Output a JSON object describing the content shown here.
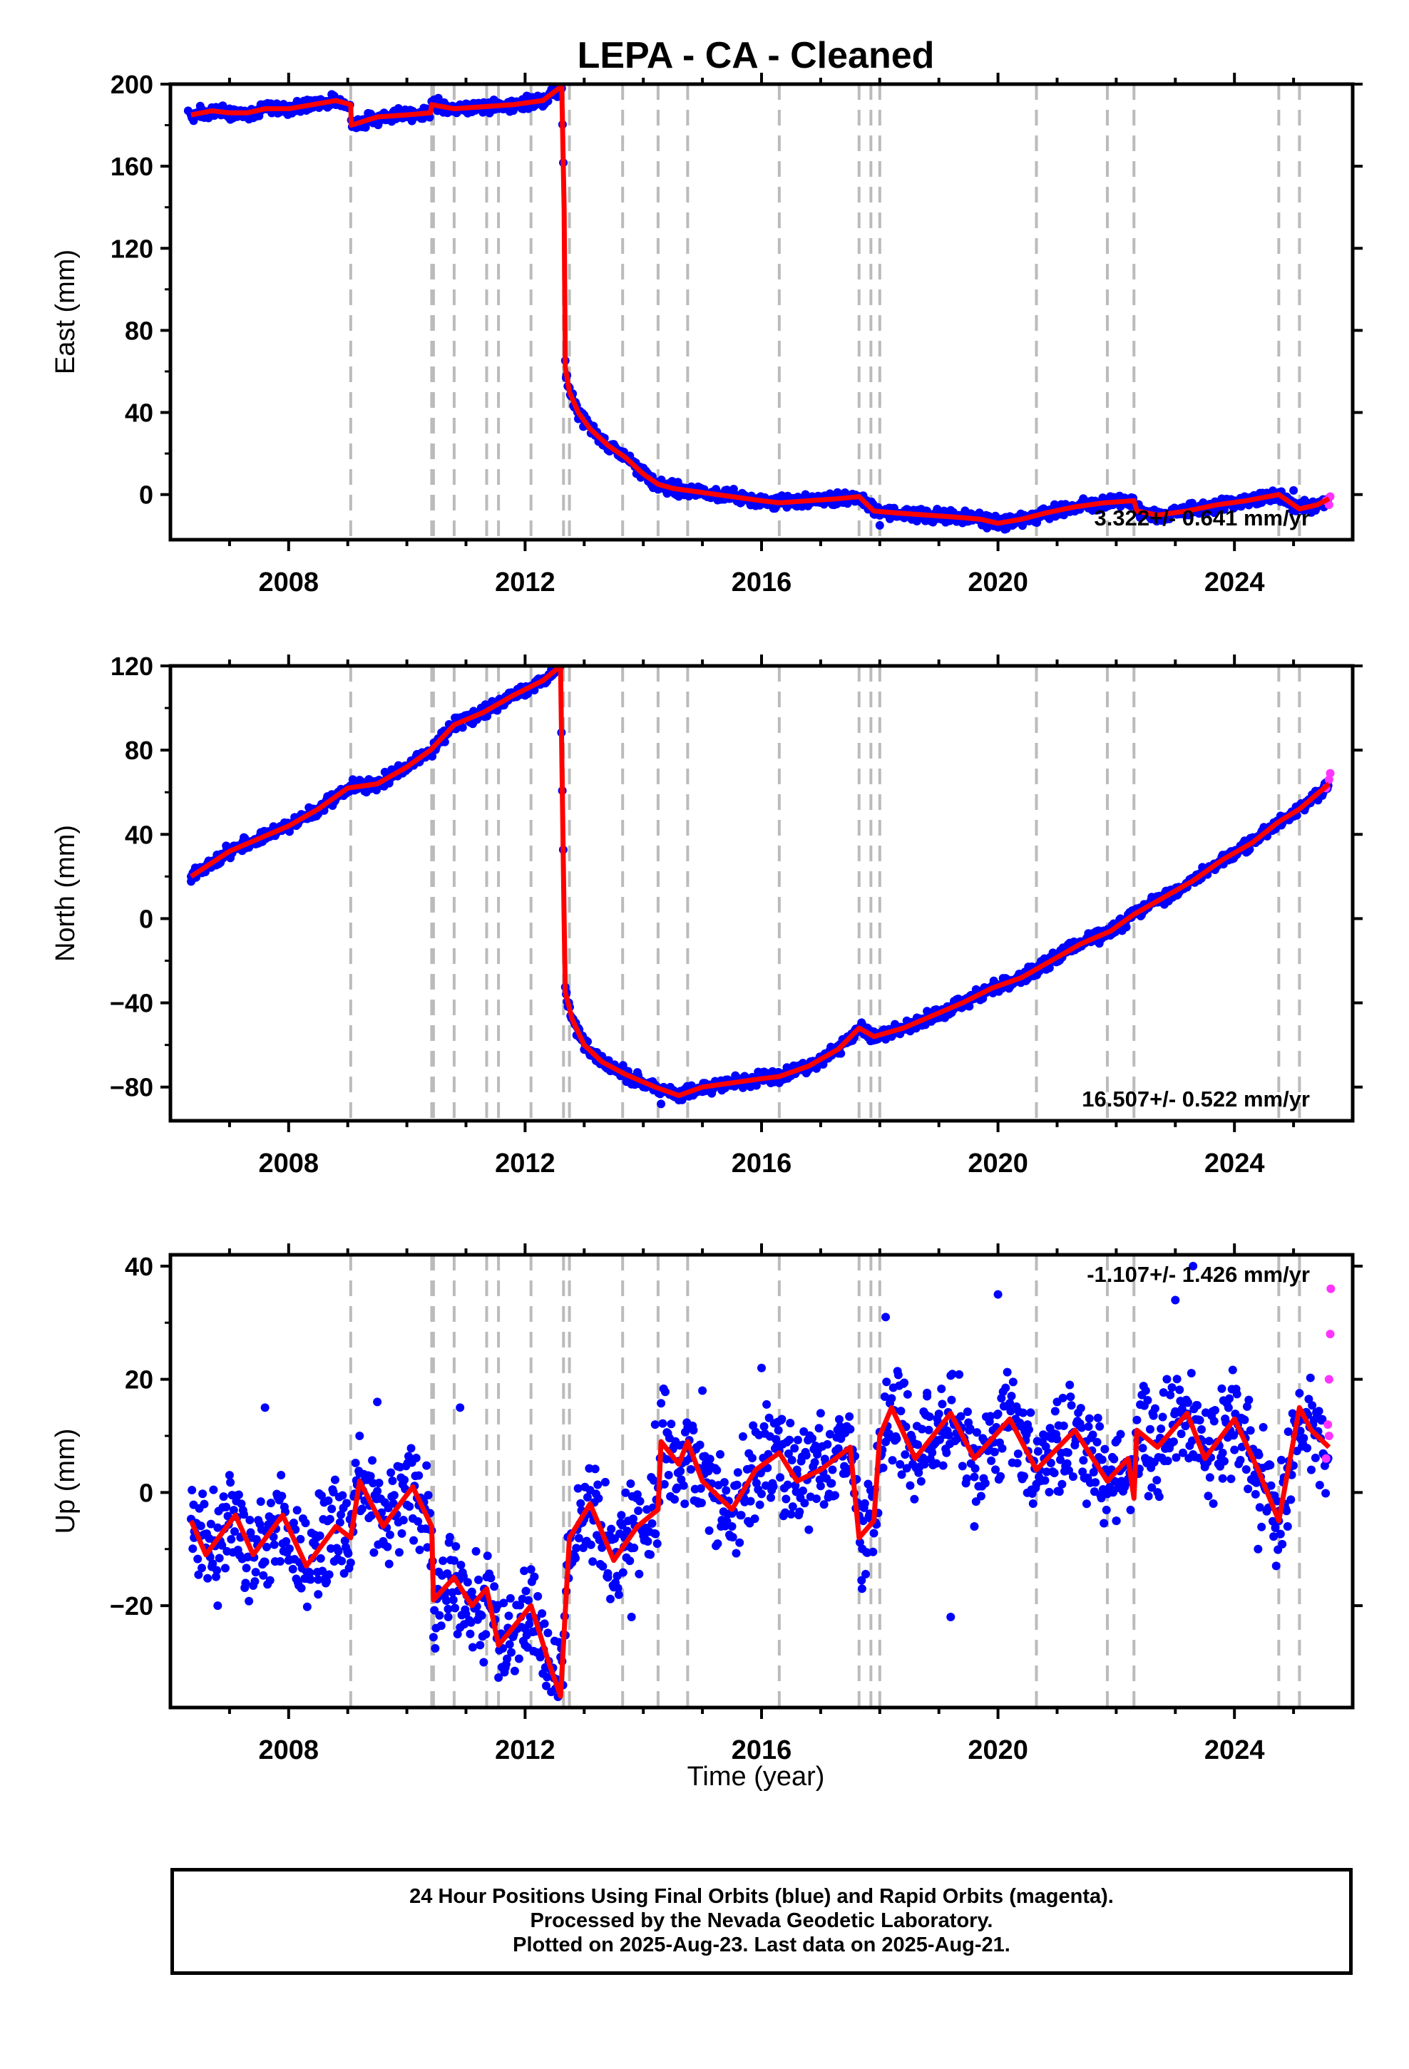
{
  "title": "LEPA  - CA - Cleaned",
  "xlabel": "Time (year)",
  "footer": {
    "line1": "24 Hour Positions Using Final Orbits (blue) and Rapid Orbits (magenta).",
    "line2": "Processed by the Nevada Geodetic Laboratory.",
    "line3": "Plotted on 2025-Aug-23. Last data on 2025-Aug-21."
  },
  "colors": {
    "final": "#0000ff",
    "rapid": "#ff33ff",
    "model": "#ff0000",
    "event": "#bbbbbb",
    "axis": "#000000"
  },
  "chart_data": [
    {
      "type": "scatter",
      "component": "East",
      "ylabel": "East (mm)",
      "xlim": [
        2006,
        2026
      ],
      "ylim": [
        -22,
        200
      ],
      "yticks": [
        0,
        40,
        80,
        120,
        160,
        200
      ],
      "xticks": [
        2008,
        2012,
        2016,
        2020,
        2024
      ],
      "rate_label": "3.322+/- 0.641 mm/yr",
      "grid": false,
      "event_years": [
        2009.05,
        2010.42,
        2010.45,
        2010.8,
        2011.35,
        2011.55,
        2012.1,
        2012.65,
        2012.75,
        2013.65,
        2014.25,
        2014.75,
        2016.3,
        2017.65,
        2017.85,
        2018.0,
        2020.65,
        2021.85,
        2022.3,
        2024.75,
        2025.1
      ],
      "model": [
        [
          2006.35,
          185
        ],
        [
          2006.7,
          187
        ],
        [
          2007.0,
          186
        ],
        [
          2007.3,
          186
        ],
        [
          2007.6,
          188
        ],
        [
          2008.0,
          188
        ],
        [
          2008.4,
          190
        ],
        [
          2008.8,
          192
        ],
        [
          2009.05,
          190
        ],
        [
          2009.06,
          180
        ],
        [
          2009.5,
          184
        ],
        [
          2010.0,
          185
        ],
        [
          2010.4,
          186
        ],
        [
          2010.42,
          190
        ],
        [
          2010.8,
          188
        ],
        [
          2011.3,
          189
        ],
        [
          2011.8,
          190
        ],
        [
          2012.3,
          192
        ],
        [
          2012.62,
          199
        ],
        [
          2012.66,
          140
        ],
        [
          2012.68,
          62
        ],
        [
          2012.75,
          50
        ],
        [
          2012.9,
          40
        ],
        [
          2013.1,
          32
        ],
        [
          2013.4,
          24
        ],
        [
          2013.7,
          18
        ],
        [
          2014.0,
          10
        ],
        [
          2014.25,
          5
        ],
        [
          2014.5,
          3
        ],
        [
          2015.0,
          1
        ],
        [
          2015.5,
          -1
        ],
        [
          2016.0,
          -3
        ],
        [
          2016.3,
          -4
        ],
        [
          2016.8,
          -3
        ],
        [
          2017.3,
          -2
        ],
        [
          2017.65,
          -1
        ],
        [
          2017.9,
          -8
        ],
        [
          2018.3,
          -9
        ],
        [
          2018.8,
          -10
        ],
        [
          2019.3,
          -11
        ],
        [
          2019.7,
          -12
        ],
        [
          2020.0,
          -14
        ],
        [
          2020.4,
          -12
        ],
        [
          2020.8,
          -9
        ],
        [
          2021.3,
          -6
        ],
        [
          2021.8,
          -4
        ],
        [
          2022.3,
          -3
        ],
        [
          2022.35,
          -8
        ],
        [
          2022.7,
          -10
        ],
        [
          2023.2,
          -8
        ],
        [
          2023.7,
          -5
        ],
        [
          2024.2,
          -3
        ],
        [
          2024.75,
          0
        ],
        [
          2025.1,
          -7
        ],
        [
          2025.4,
          -5
        ],
        [
          2025.6,
          -2
        ]
      ],
      "final_points": [
        [
          2006.3,
          187
        ],
        [
          2007.0,
          188
        ],
        [
          2007.8,
          189
        ],
        [
          2008.6,
          191
        ],
        [
          2009.1,
          181
        ],
        [
          2009.6,
          184
        ],
        [
          2010.3,
          186
        ],
        [
          2010.9,
          190
        ],
        [
          2011.5,
          190
        ],
        [
          2012.2,
          193
        ],
        [
          2012.7,
          58
        ],
        [
          2012.85,
          45
        ],
        [
          2013.0,
          36
        ],
        [
          2013.3,
          28
        ],
        [
          2013.6,
          20
        ],
        [
          2013.9,
          12
        ],
        [
          2014.2,
          6
        ],
        [
          2014.6,
          2
        ],
        [
          2015.1,
          0
        ],
        [
          2015.6,
          -2
        ],
        [
          2016.1,
          -5
        ],
        [
          2016.6,
          -3
        ],
        [
          2017.1,
          -3
        ],
        [
          2017.6,
          -1
        ],
        [
          2018.0,
          -15
        ],
        [
          2018.4,
          -9
        ],
        [
          2019.0,
          -11
        ],
        [
          2019.5,
          -12
        ],
        [
          2020.0,
          -16
        ],
        [
          2020.5,
          -11
        ],
        [
          2021.0,
          -7
        ],
        [
          2021.5,
          -5
        ],
        [
          2022.0,
          -3
        ],
        [
          2022.5,
          -9
        ],
        [
          2023.0,
          -9
        ],
        [
          2023.5,
          -6
        ],
        [
          2024.0,
          -3
        ],
        [
          2024.5,
          0
        ],
        [
          2025.0,
          2
        ],
        [
          2025.3,
          -5
        ]
      ],
      "rapid_points": [
        [
          2025.55,
          -3
        ],
        [
          2025.6,
          -5
        ],
        [
          2025.62,
          -1
        ]
      ]
    },
    {
      "type": "scatter",
      "component": "North",
      "ylabel": "North (mm)",
      "xlim": [
        2006,
        2026
      ],
      "ylim": [
        -96,
        120
      ],
      "yticks": [
        -80,
        -40,
        0,
        40,
        80,
        120
      ],
      "xticks": [
        2008,
        2012,
        2016,
        2020,
        2024
      ],
      "rate_label": "16.507+/- 0.522 mm/yr",
      "grid": false,
      "event_years": [
        2009.05,
        2010.42,
        2010.45,
        2010.8,
        2011.35,
        2011.55,
        2012.1,
        2012.65,
        2012.75,
        2013.65,
        2014.25,
        2014.75,
        2016.3,
        2017.65,
        2017.85,
        2018.0,
        2020.65,
        2021.85,
        2022.3,
        2024.75,
        2025.1
      ],
      "model": [
        [
          2006.35,
          20
        ],
        [
          2007.0,
          32
        ],
        [
          2007.5,
          38
        ],
        [
          2008.0,
          44
        ],
        [
          2008.5,
          52
        ],
        [
          2009.0,
          62
        ],
        [
          2009.5,
          64
        ],
        [
          2010.0,
          72
        ],
        [
          2010.4,
          80
        ],
        [
          2010.8,
          92
        ],
        [
          2011.3,
          98
        ],
        [
          2011.8,
          106
        ],
        [
          2012.3,
          113
        ],
        [
          2012.6,
          120
        ],
        [
          2012.66,
          0
        ],
        [
          2012.68,
          -35
        ],
        [
          2012.8,
          -48
        ],
        [
          2013.0,
          -60
        ],
        [
          2013.3,
          -68
        ],
        [
          2013.7,
          -74
        ],
        [
          2014.2,
          -80
        ],
        [
          2014.6,
          -84
        ],
        [
          2015.0,
          -80
        ],
        [
          2015.5,
          -78
        ],
        [
          2016.0,
          -76
        ],
        [
          2016.3,
          -75
        ],
        [
          2016.8,
          -70
        ],
        [
          2017.3,
          -62
        ],
        [
          2017.65,
          -52
        ],
        [
          2017.9,
          -56
        ],
        [
          2018.4,
          -52
        ],
        [
          2018.9,
          -46
        ],
        [
          2019.4,
          -40
        ],
        [
          2019.9,
          -33
        ],
        [
          2020.4,
          -28
        ],
        [
          2020.9,
          -20
        ],
        [
          2021.4,
          -12
        ],
        [
          2021.9,
          -6
        ],
        [
          2022.3,
          2
        ],
        [
          2022.8,
          10
        ],
        [
          2023.3,
          18
        ],
        [
          2023.8,
          28
        ],
        [
          2024.3,
          36
        ],
        [
          2024.75,
          46
        ],
        [
          2025.1,
          52
        ],
        [
          2025.6,
          64
        ]
      ],
      "final_points": [
        [
          2006.35,
          20
        ],
        [
          2007.0,
          30
        ],
        [
          2007.6,
          40
        ],
        [
          2008.2,
          47
        ],
        [
          2008.8,
          58
        ],
        [
          2009.4,
          63
        ],
        [
          2010.0,
          72
        ],
        [
          2010.6,
          84
        ],
        [
          2011.2,
          96
        ],
        [
          2011.8,
          106
        ],
        [
          2012.4,
          115
        ],
        [
          2012.7,
          -35
        ],
        [
          2012.9,
          -52
        ],
        [
          2013.2,
          -64
        ],
        [
          2013.6,
          -72
        ],
        [
          2014.0,
          -78
        ],
        [
          2014.3,
          -88
        ],
        [
          2014.8,
          -82
        ],
        [
          2015.3,
          -80
        ],
        [
          2015.8,
          -76
        ],
        [
          2016.3,
          -78
        ],
        [
          2016.8,
          -70
        ],
        [
          2017.3,
          -64
        ],
        [
          2017.7,
          -50
        ],
        [
          2018.2,
          -56
        ],
        [
          2018.7,
          -48
        ],
        [
          2019.2,
          -44
        ],
        [
          2019.7,
          -36
        ],
        [
          2020.2,
          -30
        ],
        [
          2020.7,
          -22
        ],
        [
          2021.2,
          -14
        ],
        [
          2021.7,
          -8
        ],
        [
          2022.2,
          0
        ],
        [
          2022.7,
          10
        ],
        [
          2023.2,
          16
        ],
        [
          2023.7,
          26
        ],
        [
          2024.2,
          34
        ],
        [
          2024.7,
          44
        ],
        [
          2025.2,
          54
        ]
      ],
      "rapid_points": [
        [
          2025.55,
          62
        ],
        [
          2025.6,
          66
        ],
        [
          2025.62,
          69
        ]
      ]
    },
    {
      "type": "scatter",
      "component": "Up",
      "ylabel": "Up (mm)",
      "xlim": [
        2006,
        2026
      ],
      "ylim": [
        -38,
        42
      ],
      "yticks": [
        -20,
        0,
        20,
        40
      ],
      "xticks": [
        2008,
        2012,
        2016,
        2020,
        2024
      ],
      "rate_label": "-1.107+/- 1.426 mm/yr",
      "grid": false,
      "event_years": [
        2009.05,
        2010.42,
        2010.45,
        2010.8,
        2011.35,
        2011.55,
        2012.1,
        2012.65,
        2012.75,
        2013.65,
        2014.25,
        2014.75,
        2016.3,
        2017.65,
        2017.85,
        2018.0,
        2020.65,
        2021.85,
        2022.3,
        2024.75,
        2025.1
      ],
      "model": [
        [
          2006.35,
          -5
        ],
        [
          2006.6,
          -11
        ],
        [
          2007.1,
          -4
        ],
        [
          2007.4,
          -11
        ],
        [
          2007.9,
          -4
        ],
        [
          2008.3,
          -13
        ],
        [
          2008.8,
          -6
        ],
        [
          2009.05,
          -8
        ],
        [
          2009.2,
          2
        ],
        [
          2009.6,
          -6
        ],
        [
          2010.1,
          1
        ],
        [
          2010.42,
          -6
        ],
        [
          2010.45,
          -19
        ],
        [
          2010.8,
          -15
        ],
        [
          2011.1,
          -20
        ],
        [
          2011.35,
          -17
        ],
        [
          2011.55,
          -27
        ],
        [
          2012.1,
          -20
        ],
        [
          2012.4,
          -30
        ],
        [
          2012.6,
          -36
        ],
        [
          2012.75,
          -8
        ],
        [
          2013.1,
          -2
        ],
        [
          2013.5,
          -12
        ],
        [
          2013.9,
          -6
        ],
        [
          2014.25,
          -3
        ],
        [
          2014.3,
          9
        ],
        [
          2014.6,
          5
        ],
        [
          2014.75,
          9
        ],
        [
          2015.0,
          2
        ],
        [
          2015.5,
          -3
        ],
        [
          2015.9,
          4
        ],
        [
          2016.3,
          7
        ],
        [
          2016.6,
          2
        ],
        [
          2017.0,
          4
        ],
        [
          2017.5,
          8
        ],
        [
          2017.65,
          -8
        ],
        [
          2017.9,
          -5
        ],
        [
          2018.0,
          10
        ],
        [
          2018.2,
          15
        ],
        [
          2018.6,
          6
        ],
        [
          2019.2,
          14
        ],
        [
          2019.6,
          6
        ],
        [
          2020.2,
          13
        ],
        [
          2020.65,
          4
        ],
        [
          2021.3,
          11
        ],
        [
          2021.85,
          2
        ],
        [
          2022.2,
          6
        ],
        [
          2022.3,
          -1
        ],
        [
          2022.35,
          11
        ],
        [
          2022.7,
          8
        ],
        [
          2023.2,
          14
        ],
        [
          2023.5,
          6
        ],
        [
          2024.0,
          13
        ],
        [
          2024.4,
          4
        ],
        [
          2024.75,
          -5
        ],
        [
          2025.1,
          15
        ],
        [
          2025.3,
          11
        ],
        [
          2025.6,
          8
        ]
      ],
      "final_points": [
        [
          2006.4,
          -8
        ],
        [
          2006.8,
          -20
        ],
        [
          2007.2,
          -2
        ],
        [
          2007.6,
          15
        ],
        [
          2008.0,
          -12
        ],
        [
          2008.5,
          -18
        ],
        [
          2009.2,
          10
        ],
        [
          2009.5,
          16
        ],
        [
          2009.8,
          -4
        ],
        [
          2010.2,
          3
        ],
        [
          2010.7,
          -22
        ],
        [
          2010.9,
          15
        ],
        [
          2011.3,
          -30
        ],
        [
          2011.7,
          -25
        ],
        [
          2012.0,
          -27
        ],
        [
          2012.3,
          -32
        ],
        [
          2013.0,
          -4
        ],
        [
          2013.4,
          -15
        ],
        [
          2013.8,
          -22
        ],
        [
          2014.2,
          12
        ],
        [
          2014.7,
          -2
        ],
        [
          2015.0,
          18
        ],
        [
          2015.5,
          -6
        ],
        [
          2016.0,
          22
        ],
        [
          2016.6,
          4
        ],
        [
          2017.0,
          14
        ],
        [
          2017.7,
          -17
        ],
        [
          2018.1,
          31
        ],
        [
          2018.8,
          17
        ],
        [
          2019.2,
          -22
        ],
        [
          2019.6,
          -6
        ],
        [
          2020.0,
          35
        ],
        [
          2020.5,
          12
        ],
        [
          2021.0,
          16
        ],
        [
          2021.5,
          -2
        ],
        [
          2022.0,
          -5
        ],
        [
          2022.5,
          18
        ],
        [
          2023.0,
          34
        ],
        [
          2023.3,
          40
        ],
        [
          2023.8,
          7
        ],
        [
          2024.4,
          -10
        ],
        [
          2024.9,
          -6
        ],
        [
          2025.3,
          4
        ]
      ],
      "rapid_points": [
        [
          2025.55,
          6
        ],
        [
          2025.58,
          12
        ],
        [
          2025.6,
          20
        ],
        [
          2025.62,
          28
        ],
        [
          2025.63,
          36
        ],
        [
          2025.6,
          10
        ]
      ]
    }
  ]
}
